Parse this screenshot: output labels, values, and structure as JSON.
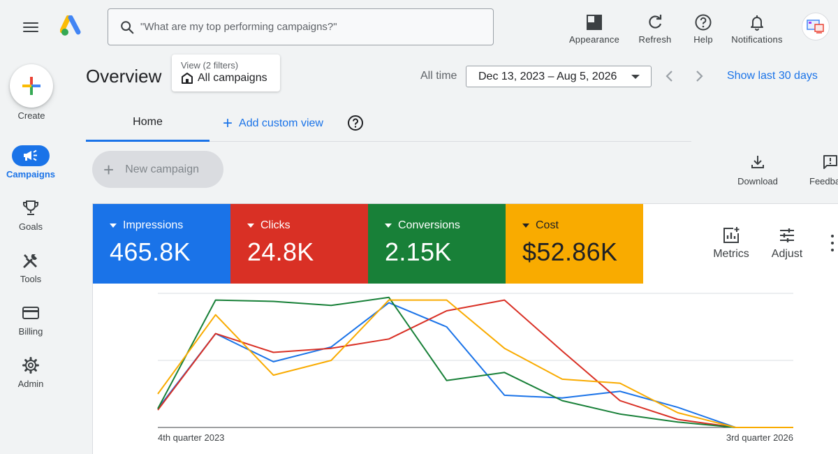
{
  "header": {
    "search_placeholder": "\"What are my top performing campaigns?\"",
    "actions": [
      {
        "label": "Appearance",
        "icon": "appearance-icon"
      },
      {
        "label": "Refresh",
        "icon": "refresh-icon"
      },
      {
        "label": "Help",
        "icon": "help-icon"
      },
      {
        "label": "Notifications",
        "icon": "bell-icon"
      }
    ]
  },
  "sidebar": {
    "create_label": "Create",
    "items": [
      {
        "label": "Campaigns",
        "icon": "megaphone-icon",
        "active": true
      },
      {
        "label": "Goals",
        "icon": "trophy-icon",
        "active": false
      },
      {
        "label": "Tools",
        "icon": "tools-icon",
        "active": false
      },
      {
        "label": "Billing",
        "icon": "credit-card-icon",
        "active": false
      },
      {
        "label": "Admin",
        "icon": "gear-icon",
        "active": false
      }
    ]
  },
  "overview": {
    "title": "Overview",
    "view_filter_label": "View (2 filters)",
    "view_filter_value": "All campaigns",
    "all_time_label": "All time",
    "date_range": "Dec 13, 2023 – Aug 5, 2026",
    "show_last_label": "Show last 30 days"
  },
  "tabs": {
    "home": "Home",
    "add_custom_view": "Add custom view"
  },
  "toolbar": {
    "new_campaign": "New campaign",
    "download": "Download",
    "feedback": "Feedback"
  },
  "metrics": [
    {
      "label": "Impressions",
      "value": "465.8K",
      "color": "#1a73e8"
    },
    {
      "label": "Clicks",
      "value": "24.8K",
      "color": "#d93025"
    },
    {
      "label": "Conversions",
      "value": "2.15K",
      "color": "#188038"
    },
    {
      "label": "Cost",
      "value": "$52.86K",
      "color": "#f9ab00",
      "text_color": "#202124"
    }
  ],
  "card_tools": {
    "metrics": "Metrics",
    "adjust": "Adjust"
  },
  "chart_data": {
    "type": "line",
    "x_start_label": "4th quarter 2023",
    "x_end_label": "3rd quarter 2026",
    "ylim": [
      0,
      100
    ],
    "grid": true,
    "series": [
      {
        "color": "#1a73e8",
        "values": [
          14,
          70,
          49,
          60,
          93,
          75,
          24,
          22,
          27,
          15,
          0,
          0
        ]
      },
      {
        "color": "#d93025",
        "values": [
          13,
          70,
          56,
          59,
          66,
          87,
          95,
          57,
          20,
          6,
          0,
          0
        ]
      },
      {
        "color": "#188038",
        "values": [
          14,
          95,
          94,
          91,
          97,
          35,
          41,
          20,
          10,
          4,
          0,
          0
        ]
      },
      {
        "color": "#f9ab00",
        "values": [
          25,
          84,
          39,
          50,
          95,
          95,
          59,
          36,
          33,
          11,
          0,
          0
        ]
      }
    ]
  }
}
